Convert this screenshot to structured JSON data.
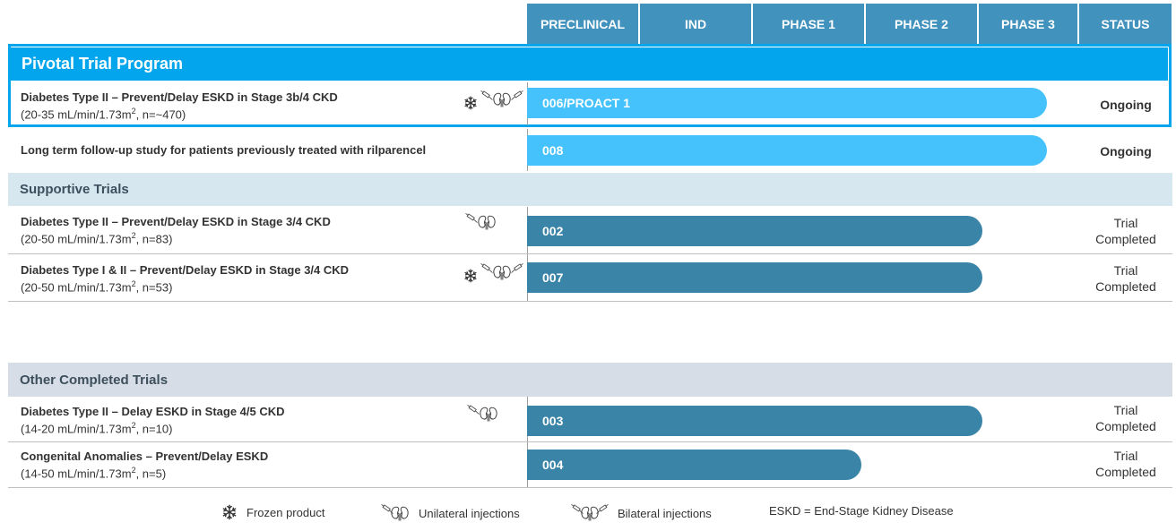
{
  "header": {
    "columns": [
      "PRECLINICAL",
      "IND",
      "PHASE 1",
      "PHASE 2",
      "PHASE 3",
      "STATUS"
    ]
  },
  "sections": {
    "pivotal": "Pivotal Trial Program",
    "supportive": "Supportive Trials",
    "other": "Other Completed Trials"
  },
  "rows": [
    {
      "title": "Diabetes Type II – Prevent/Delay ESKD in Stage 3b/4 CKD",
      "sub_pre": "(20-35 mL/min/1.73m",
      "sub_sup": "2",
      "sub_post": ", n=~470)",
      "bar": "006/PROACT 1",
      "status": "Ongoing",
      "icons": [
        "snowflake-icon",
        "bilateral-injection-icon"
      ],
      "progress_phase": "Phase 3"
    },
    {
      "title": "Long term follow-up study for patients previously treated with rilparencel",
      "sub_pre": "",
      "sub_sup": "",
      "sub_post": "",
      "bar": "008",
      "status": "Ongoing",
      "icons": [],
      "progress_phase": "Phase 3"
    },
    {
      "title": "Diabetes Type II – Prevent/Delay ESKD in Stage 3/4 CKD",
      "sub_pre": "(20-50 mL/min/1.73m",
      "sub_sup": "2",
      "sub_post": ", n=83)",
      "bar": "002",
      "status_line1": "Trial",
      "status_line2": "Completed",
      "icons": [
        "unilateral-injection-icon"
      ],
      "progress_phase": "Phase 2"
    },
    {
      "title": "Diabetes Type I & II – Prevent/Delay ESKD in Stage 3/4 CKD",
      "sub_pre": "(20-50 mL/min/1.73m",
      "sub_sup": "2",
      "sub_post": ", n=53)",
      "bar": "007",
      "status_line1": "Trial",
      "status_line2": "Completed",
      "icons": [
        "snowflake-icon",
        "bilateral-injection-icon"
      ],
      "progress_phase": "Phase 2"
    },
    {
      "title": "Diabetes Type II – Delay ESKD in Stage 4/5 CKD",
      "sub_pre": "(14-20 mL/min/1.73m",
      "sub_sup": "2",
      "sub_post": ", n=10)",
      "bar": "003",
      "status_line1": "Trial",
      "status_line2": "Completed",
      "icons": [
        "unilateral-injection-icon"
      ],
      "progress_phase": "Phase 2"
    },
    {
      "title": "Congenital Anomalies – Prevent/Delay ESKD",
      "sub_pre": "(14-50 mL/min/1.73m",
      "sub_sup": "2",
      "sub_post": ", n=5)",
      "bar": "004",
      "status_line1": "Trial",
      "status_line2": "Completed",
      "icons": [],
      "progress_phase": "Phase 1"
    }
  ],
  "legend": {
    "frozen": "Frozen product",
    "unilateral": "Unilateral injections",
    "bilateral": "Bilateral injections",
    "eskd": "ESKD = End-Stage Kidney Disease"
  },
  "colors": {
    "header": "#4292be",
    "pivotal_band": "#03a5ec",
    "bar_ongoing": "#45c2fb",
    "bar_completed": "#3a84a8",
    "supportive_band": "#d6e7f0",
    "other_band": "#d6dde6"
  }
}
